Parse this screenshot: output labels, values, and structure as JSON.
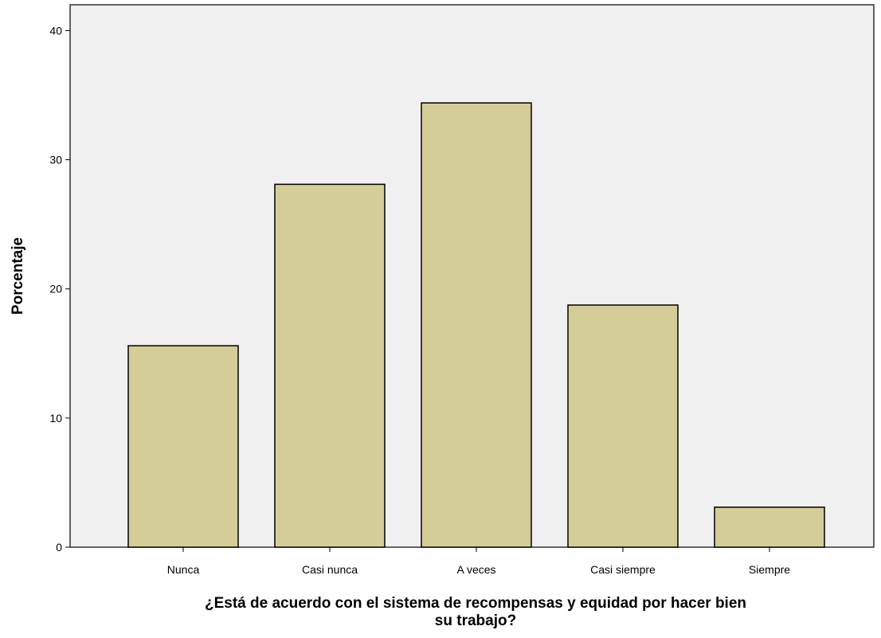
{
  "chart_data": {
    "type": "bar",
    "categories": [
      "Nunca",
      "Casi nunca",
      "A veces",
      "Casi siempre",
      "Siempre"
    ],
    "values": [
      15.6,
      28.1,
      34.4,
      18.75,
      3.1
    ],
    "title": "",
    "xlabel_lines": [
      "¿Está de acuerdo con el sistema de recompensas y equidad por hacer bien",
      "su trabajo?"
    ],
    "ylabel": "Porcentaje",
    "ylim": [
      0,
      42
    ],
    "yticks": [
      0,
      10,
      20,
      30,
      40
    ],
    "grid": false,
    "legend": "none",
    "colors": {
      "bar_fill": "#d4cd98",
      "plot_background": "#f0f0f0"
    }
  }
}
